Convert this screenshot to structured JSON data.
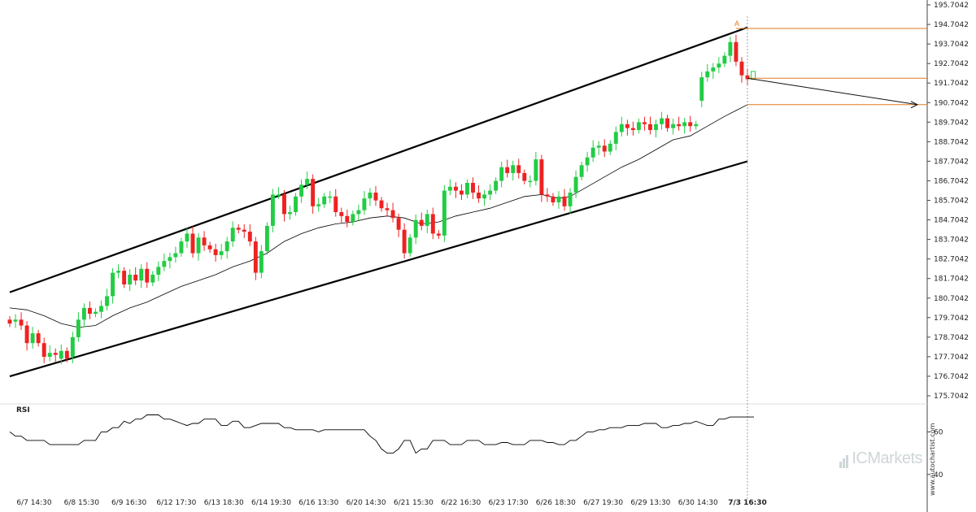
{
  "chart_data": {
    "type": "candlestick",
    "y_ticks": [
      "195.7042",
      "194.7042",
      "193.7042",
      "192.7042",
      "191.7042",
      "190.7042",
      "189.7042",
      "188.7042",
      "187.7042",
      "186.7042",
      "185.7042",
      "184.7042",
      "183.7042",
      "182.7042",
      "181.7042",
      "180.7042",
      "179.7042",
      "178.7042",
      "177.7042",
      "176.7042",
      "175.7042"
    ],
    "ylim": [
      174.9,
      195.8
    ],
    "x_labels": [
      "6/7 14:30",
      "6/8 15:30",
      "6/9 16:30",
      "6/12 17:30",
      "6/13 18:30",
      "6/14 19:30",
      "6/16 13:30",
      "6/20 14:30",
      "6/21 15:30",
      "6/22 16:30",
      "6/23 17:30",
      "6/26 18:30",
      "6/27 19:30",
      "6/29 13:30",
      "6/30 14:30",
      "7/3 16:30"
    ],
    "highlighted_x_label": "7/3 16:30",
    "num_bars": 130,
    "colors": {
      "up": "#22cc44",
      "down": "#ee2222",
      "channel": "#000000",
      "level": "#e07a20",
      "ma": "#000000",
      "grid_line": "#888888"
    },
    "candles_open_close": [
      [
        179.6,
        179.4
      ],
      [
        179.5,
        179.6
      ],
      [
        179.6,
        179.3
      ],
      [
        179.3,
        178.4
      ],
      [
        178.4,
        178.9
      ],
      [
        178.9,
        178.4
      ],
      [
        178.4,
        177.7
      ],
      [
        177.7,
        177.9
      ],
      [
        177.9,
        177.8
      ],
      [
        177.6,
        178.0
      ],
      [
        178.0,
        177.6
      ],
      [
        177.7,
        178.7
      ],
      [
        178.7,
        179.6
      ],
      [
        179.6,
        180.2
      ],
      [
        180.2,
        179.9
      ],
      [
        179.9,
        180.0
      ],
      [
        180.0,
        180.3
      ],
      [
        180.3,
        180.8
      ],
      [
        180.8,
        182.0
      ],
      [
        182.0,
        182.1
      ],
      [
        182.1,
        181.4
      ],
      [
        181.4,
        181.9
      ],
      [
        181.9,
        181.6
      ],
      [
        181.6,
        182.2
      ],
      [
        182.2,
        181.5
      ],
      [
        181.5,
        181.9
      ],
      [
        181.9,
        182.3
      ],
      [
        182.3,
        182.6
      ],
      [
        182.6,
        182.8
      ],
      [
        182.8,
        183.0
      ],
      [
        183.0,
        183.6
      ],
      [
        183.6,
        184.0
      ],
      [
        184.0,
        183.0
      ],
      [
        183.0,
        183.8
      ],
      [
        183.8,
        183.4
      ],
      [
        183.4,
        183.2
      ],
      [
        183.2,
        182.9
      ],
      [
        182.9,
        183.1
      ],
      [
        183.1,
        183.6
      ],
      [
        183.6,
        184.3
      ],
      [
        184.3,
        184.2
      ],
      [
        184.2,
        184.1
      ],
      [
        184.1,
        183.6
      ],
      [
        183.6,
        182.0
      ],
      [
        182.0,
        183.1
      ],
      [
        183.1,
        184.4
      ],
      [
        184.4,
        186.0
      ],
      [
        186.0,
        186.0
      ],
      [
        186.0,
        185.0
      ],
      [
        185.0,
        185.1
      ],
      [
        185.1,
        185.9
      ],
      [
        185.9,
        186.5
      ],
      [
        186.5,
        186.8
      ],
      [
        186.8,
        185.4
      ],
      [
        185.4,
        185.5
      ],
      [
        185.5,
        185.9
      ],
      [
        185.9,
        185.9
      ],
      [
        185.9,
        185.1
      ],
      [
        185.1,
        184.9
      ],
      [
        184.9,
        184.6
      ],
      [
        184.6,
        185.0
      ],
      [
        185.0,
        185.2
      ],
      [
        185.2,
        185.8
      ],
      [
        185.8,
        186.1
      ],
      [
        186.1,
        185.7
      ],
      [
        185.7,
        185.3
      ],
      [
        185.3,
        185.2
      ],
      [
        185.2,
        184.8
      ],
      [
        184.8,
        184.2
      ],
      [
        184.2,
        183.0
      ],
      [
        183.0,
        183.8
      ],
      [
        183.8,
        184.7
      ],
      [
        184.7,
        184.4
      ],
      [
        184.4,
        185.0
      ],
      [
        185.0,
        184.0
      ],
      [
        184.0,
        183.9
      ],
      [
        183.9,
        186.2
      ],
      [
        186.2,
        186.4
      ],
      [
        186.4,
        186.2
      ],
      [
        186.2,
        186.0
      ],
      [
        186.0,
        186.6
      ],
      [
        186.6,
        186.1
      ],
      [
        186.1,
        185.8
      ],
      [
        185.8,
        186.0
      ],
      [
        186.0,
        186.2
      ],
      [
        186.2,
        186.7
      ],
      [
        186.7,
        187.4
      ],
      [
        187.4,
        187.1
      ],
      [
        187.1,
        187.5
      ],
      [
        187.5,
        187.1
      ],
      [
        187.1,
        186.7
      ],
      [
        186.7,
        186.7
      ],
      [
        186.7,
        187.8
      ],
      [
        187.8,
        186.0
      ],
      [
        186.0,
        185.9
      ],
      [
        185.9,
        185.6
      ],
      [
        185.6,
        185.9
      ],
      [
        185.9,
        185.4
      ],
      [
        185.4,
        186.1
      ],
      [
        186.1,
        186.9
      ],
      [
        186.9,
        187.5
      ],
      [
        187.5,
        187.9
      ],
      [
        187.9,
        188.4
      ],
      [
        188.4,
        188.5
      ],
      [
        188.5,
        188.2
      ],
      [
        188.2,
        188.6
      ],
      [
        188.6,
        189.2
      ],
      [
        189.2,
        189.6
      ],
      [
        189.6,
        189.4
      ],
      [
        189.4,
        189.3
      ],
      [
        189.3,
        189.7
      ],
      [
        189.7,
        189.6
      ],
      [
        189.6,
        189.3
      ],
      [
        189.3,
        189.6
      ],
      [
        189.6,
        189.9
      ],
      [
        189.9,
        189.4
      ],
      [
        189.4,
        189.6
      ],
      [
        189.6,
        189.5
      ],
      [
        189.5,
        189.7
      ],
      [
        189.7,
        189.5
      ],
      [
        189.5,
        189.6
      ],
      [
        190.8,
        192.0
      ],
      [
        192.0,
        192.3
      ],
      [
        192.3,
        192.5
      ],
      [
        192.5,
        192.7
      ],
      [
        192.7,
        193.1
      ],
      [
        193.1,
        193.8
      ],
      [
        193.8,
        192.8
      ],
      [
        192.8,
        192.1
      ],
      [
        192.1,
        191.9
      ]
    ],
    "channel": {
      "upper": {
        "from": [
          0,
          181.0
        ],
        "to": [
          129,
          194.55
        ]
      },
      "lower": {
        "from": [
          0,
          176.7
        ],
        "to": [
          129,
          187.7
        ]
      }
    },
    "moving_average": [
      [
        0,
        180.2
      ],
      [
        3,
        180.1
      ],
      [
        6,
        179.8
      ],
      [
        9,
        179.4
      ],
      [
        12,
        179.2
      ],
      [
        15,
        179.3
      ],
      [
        18,
        179.8
      ],
      [
        21,
        180.2
      ],
      [
        24,
        180.5
      ],
      [
        27,
        180.9
      ],
      [
        30,
        181.3
      ],
      [
        33,
        181.6
      ],
      [
        36,
        181.9
      ],
      [
        39,
        182.3
      ],
      [
        42,
        182.6
      ],
      [
        45,
        183.0
      ],
      [
        48,
        183.6
      ],
      [
        51,
        184.0
      ],
      [
        54,
        184.3
      ],
      [
        57,
        184.5
      ],
      [
        60,
        184.6
      ],
      [
        63,
        184.8
      ],
      [
        66,
        184.9
      ],
      [
        69,
        184.8
      ],
      [
        72,
        184.5
      ],
      [
        75,
        184.6
      ],
      [
        78,
        184.9
      ],
      [
        81,
        185.1
      ],
      [
        84,
        185.3
      ],
      [
        87,
        185.6
      ],
      [
        90,
        185.9
      ],
      [
        93,
        186.0
      ],
      [
        96,
        185.8
      ],
      [
        98,
        185.9
      ],
      [
        101,
        186.4
      ],
      [
        104,
        186.9
      ],
      [
        107,
        187.4
      ],
      [
        110,
        187.8
      ],
      [
        113,
        188.3
      ],
      [
        116,
        188.8
      ],
      [
        119,
        189.0
      ],
      [
        122,
        189.5
      ],
      [
        125,
        190.0
      ],
      [
        127,
        190.3
      ],
      [
        129,
        190.6
      ]
    ],
    "levels": [
      {
        "value": 194.5,
        "from_bar": 127
      },
      {
        "value": 191.95,
        "from_bar": 129
      },
      {
        "value": 190.6,
        "from_bar": 129
      }
    ],
    "forecast_arrow": {
      "from": [
        129,
        191.95
      ],
      "to": [
        159,
        190.6
      ]
    },
    "peak_marker": {
      "label": "A",
      "bar": 127,
      "value": 194.55
    },
    "rsi": {
      "label": "RSI",
      "ticks": [
        "60",
        "40"
      ],
      "range": [
        30,
        72
      ],
      "values": [
        60,
        58,
        58,
        56,
        56,
        56,
        56,
        54,
        54,
        54,
        54,
        54,
        54,
        56,
        56,
        56,
        60,
        60,
        62,
        62,
        65,
        64,
        66,
        66,
        68,
        68,
        68,
        66,
        66,
        65,
        64,
        63,
        64,
        64,
        66,
        66,
        66,
        63,
        63,
        65,
        65,
        62,
        62,
        63,
        64,
        64,
        64,
        64,
        62,
        62,
        61,
        61,
        61,
        61,
        60,
        61,
        61,
        61,
        61,
        61,
        61,
        61,
        61,
        58,
        56,
        52,
        50,
        50,
        52,
        56,
        56,
        50,
        52,
        52,
        56,
        56,
        56,
        54,
        54,
        54,
        56,
        56,
        56,
        54,
        54,
        54,
        55,
        55,
        54,
        54,
        54,
        56,
        56,
        56,
        55,
        55,
        54,
        54,
        56,
        56,
        58,
        60,
        60,
        61,
        61,
        62,
        62,
        62,
        63,
        63,
        63,
        64,
        64,
        64,
        62,
        62,
        63,
        63,
        64,
        64,
        65,
        64,
        63,
        63,
        66,
        66,
        67,
        67,
        67,
        67
      ]
    }
  },
  "watermark": {
    "brand_prefix": "IC",
    "brand_suffix": "Markets"
  },
  "credit": "www.autochartist.com"
}
